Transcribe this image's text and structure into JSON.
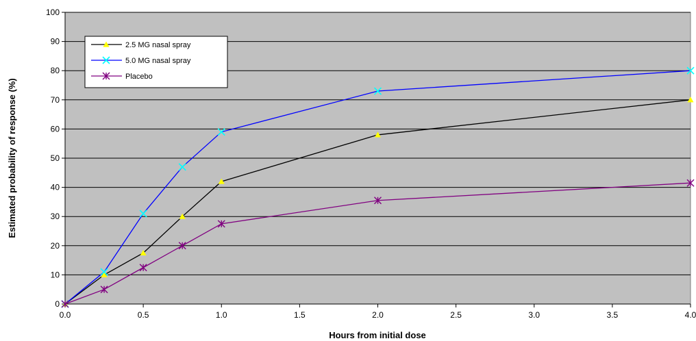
{
  "chart_data": {
    "type": "line",
    "xlabel": "Hours from initial dose",
    "ylabel": "Estimated probability of response (%)",
    "xlim": [
      0,
      4
    ],
    "ylim": [
      0,
      100
    ],
    "xticks": [
      "0.0",
      "0.5",
      "1.0",
      "1.5",
      "2.0",
      "2.5",
      "3.0",
      "3.5",
      "4.0"
    ],
    "yticks": [
      "0",
      "10",
      "20",
      "30",
      "40",
      "50",
      "60",
      "70",
      "80",
      "90",
      "100"
    ],
    "grid": "horizontal",
    "legend_position": "top-left",
    "series": [
      {
        "name": "2.5 MG nasal spray",
        "line_color": "#000000",
        "marker_color": "#FFFF00",
        "marker": "triangle",
        "x": [
          0,
          0.25,
          0.5,
          0.75,
          1.0,
          2.0,
          4.0
        ],
        "y": [
          0,
          10,
          17.5,
          30,
          42,
          58,
          70
        ]
      },
      {
        "name": "5.0 MG nasal spray",
        "line_color": "#0000FF",
        "marker_color": "#00FFFF",
        "marker": "x",
        "x": [
          0,
          0.25,
          0.5,
          0.75,
          1.0,
          2.0,
          4.0
        ],
        "y": [
          0,
          11,
          31,
          47,
          59,
          73,
          80
        ]
      },
      {
        "name": "Placebo",
        "line_color": "#800080",
        "marker_color": "#800080",
        "marker": "star",
        "x": [
          0,
          0.25,
          0.5,
          0.75,
          1.0,
          2.0,
          4.0
        ],
        "y": [
          0,
          5,
          12.5,
          20,
          27.5,
          35.5,
          41.5
        ]
      }
    ]
  },
  "colors": {
    "plot_background": "#C0C0C0",
    "gridline": "#000000"
  }
}
